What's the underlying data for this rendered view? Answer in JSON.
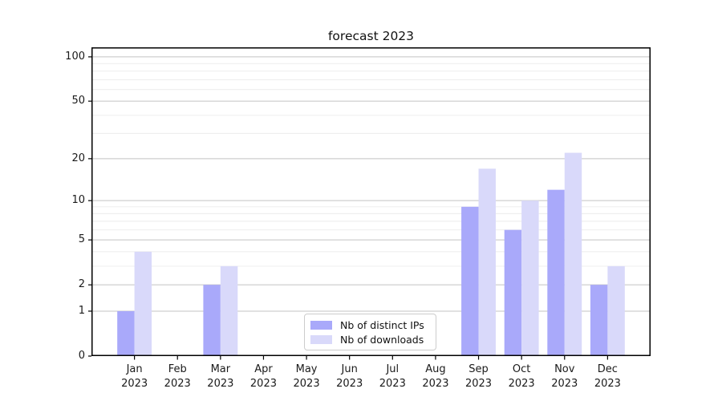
{
  "chart_data": {
    "type": "bar",
    "title": "forecast 2023",
    "categories": [
      "Jan 2023",
      "Feb 2023",
      "Mar 2023",
      "Apr 2023",
      "May 2023",
      "Jun 2023",
      "Jul 2023",
      "Aug 2023",
      "Sep 2023",
      "Oct 2023",
      "Nov 2023",
      "Dec 2023"
    ],
    "series": [
      {
        "name": "Nb of distinct IPs",
        "color": "#a9a9fa",
        "values": [
          1,
          0,
          2,
          0,
          0,
          0,
          0,
          0,
          9,
          6,
          12,
          2
        ]
      },
      {
        "name": "Nb of downloads",
        "color": "#d9d9fa",
        "values": [
          4,
          0,
          3,
          0,
          0,
          0,
          0,
          0,
          17,
          10,
          22,
          3
        ]
      }
    ],
    "yscale": "log1p",
    "ylim": [
      0,
      116
    ],
    "y_major_ticks": [
      0,
      1,
      2,
      5,
      10,
      20,
      50,
      100
    ],
    "y_minor_ticks": [
      3,
      4,
      6,
      7,
      8,
      9,
      30,
      40,
      60,
      70,
      80,
      90
    ],
    "grid": true,
    "legend_position": "lower center"
  },
  "styles": {
    "background": "#ffffff",
    "major_grid_color": "#c3c3c3",
    "minor_grid_color": "#ececec",
    "spine_color": "#000000",
    "tick_color": "#1a1a1a",
    "text_color": "#1a1a1a",
    "legend_border_color": "#cccccc"
  }
}
